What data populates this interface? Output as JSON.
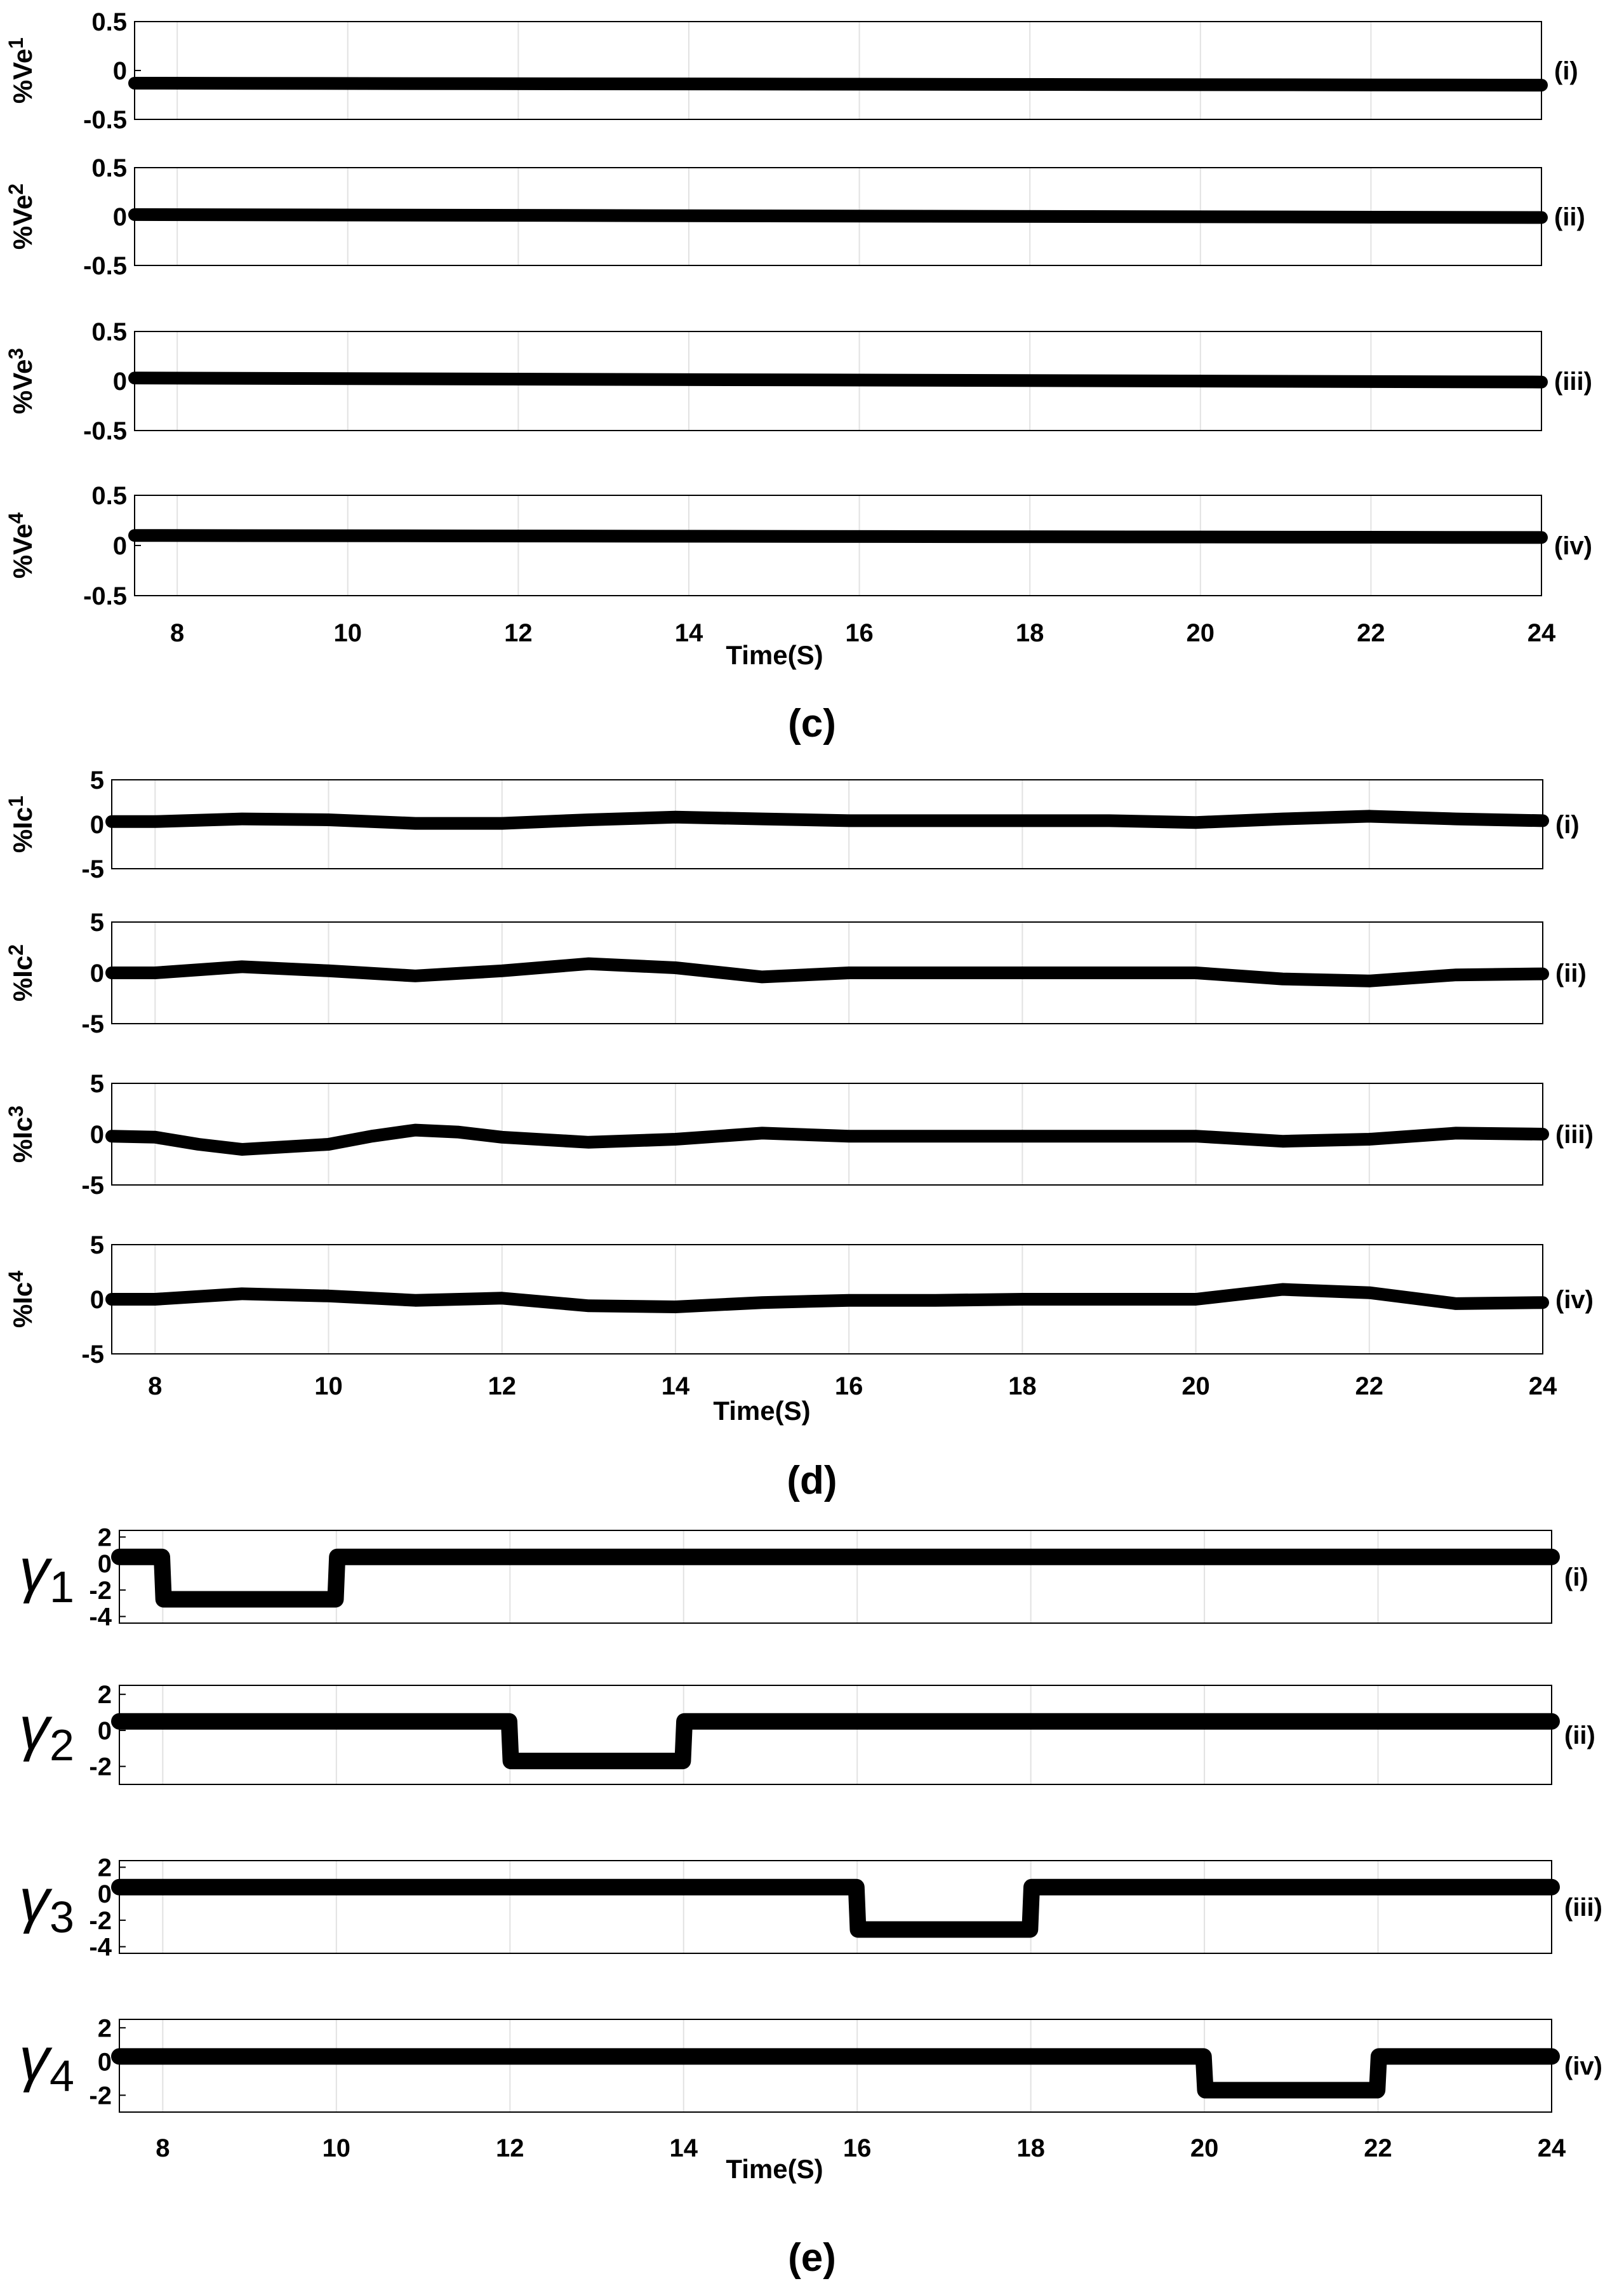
{
  "chart_data": [
    {
      "type": "line",
      "group": "c",
      "ylabel_main": "%Ve",
      "ylabel_sub": "1",
      "tag": "(i)",
      "xlim": [
        7.5,
        24
      ],
      "ylim": [
        -0.5,
        0.5
      ],
      "yticks": [
        "0.5",
        "0",
        "-0.5"
      ],
      "x": [
        7.5,
        24
      ],
      "series": [
        {
          "values": [
            -0.13,
            -0.15
          ]
        }
      ]
    },
    {
      "type": "line",
      "group": "c",
      "ylabel_main": "%Ve",
      "ylabel_sub": "2",
      "tag": "(ii)",
      "xlim": [
        7.5,
        24
      ],
      "ylim": [
        -0.5,
        0.5
      ],
      "yticks": [
        "0.5",
        "0",
        "-0.5"
      ],
      "x": [
        7.5,
        24
      ],
      "series": [
        {
          "values": [
            0.02,
            -0.01
          ]
        }
      ]
    },
    {
      "type": "line",
      "group": "c",
      "ylabel_main": "%Ve",
      "ylabel_sub": "3",
      "tag": "(iii)",
      "xlim": [
        7.5,
        24
      ],
      "ylim": [
        -0.5,
        0.5
      ],
      "yticks": [
        "0.5",
        "0",
        "-0.5"
      ],
      "x": [
        7.5,
        24
      ],
      "series": [
        {
          "values": [
            0.03,
            -0.01
          ]
        }
      ]
    },
    {
      "type": "line",
      "group": "c",
      "ylabel_main": "%Ve",
      "ylabel_sub": "4",
      "tag": "(iv)",
      "xlim": [
        7.5,
        24
      ],
      "ylim": [
        -0.5,
        0.5
      ],
      "yticks": [
        "0.5",
        "0",
        "-0.5"
      ],
      "x": [
        7.5,
        24
      ],
      "series": [
        {
          "values": [
            0.1,
            0.08
          ]
        }
      ]
    },
    {
      "type": "line",
      "group": "d",
      "ylabel_main": "%Ic",
      "ylabel_sub": "1",
      "tag": "(i)",
      "xlim": [
        7.5,
        24
      ],
      "ylim": [
        -5,
        5
      ],
      "yticks": [
        "5",
        "0",
        "-5"
      ],
      "x": [
        7.5,
        8,
        9,
        10,
        11,
        12,
        13,
        14,
        15,
        16,
        17,
        18,
        19,
        20,
        21,
        22,
        23,
        24
      ],
      "series": [
        {
          "values": [
            0.3,
            0.3,
            0.6,
            0.5,
            0.1,
            0.1,
            0.5,
            0.8,
            0.6,
            0.4,
            0.4,
            0.4,
            0.4,
            0.2,
            0.6,
            0.9,
            0.6,
            0.4
          ]
        }
      ]
    },
    {
      "type": "line",
      "group": "d",
      "ylabel_main": "%Ic",
      "ylabel_sub": "2",
      "tag": "(ii)",
      "xlim": [
        7.5,
        24
      ],
      "ylim": [
        -5,
        5
      ],
      "yticks": [
        "5",
        "0",
        "-5"
      ],
      "x": [
        7.5,
        8,
        9,
        10,
        11,
        12,
        13,
        14,
        15,
        16,
        17,
        18,
        19,
        20,
        21,
        22,
        23,
        24
      ],
      "series": [
        {
          "values": [
            0.0,
            0.0,
            0.6,
            0.2,
            -0.3,
            0.2,
            0.9,
            0.5,
            -0.4,
            0.0,
            0.0,
            0.0,
            0.0,
            0.0,
            -0.6,
            -0.8,
            -0.2,
            -0.1
          ]
        }
      ]
    },
    {
      "type": "line",
      "group": "d",
      "ylabel_main": "%Ic",
      "ylabel_sub": "3",
      "tag": "(iii)",
      "xlim": [
        7.5,
        24
      ],
      "ylim": [
        -5,
        5
      ],
      "yticks": [
        "5",
        "0",
        "-5"
      ],
      "x": [
        7.5,
        8,
        8.5,
        9,
        10,
        10.5,
        11,
        11.5,
        12,
        13,
        14,
        15,
        16,
        17,
        18,
        19,
        20,
        21,
        22,
        23,
        24
      ],
      "series": [
        {
          "values": [
            -0.2,
            -0.3,
            -1.0,
            -1.5,
            -1.0,
            -0.2,
            0.4,
            0.2,
            -0.3,
            -0.8,
            -0.5,
            0.1,
            -0.2,
            -0.2,
            -0.2,
            -0.2,
            -0.2,
            -0.7,
            -0.5,
            0.1,
            0.0
          ]
        }
      ]
    },
    {
      "type": "line",
      "group": "d",
      "ylabel_main": "%Ic",
      "ylabel_sub": "4",
      "tag": "(iv)",
      "xlim": [
        7.5,
        24
      ],
      "ylim": [
        -5,
        5
      ],
      "yticks": [
        "5",
        "0",
        "-5"
      ],
      "x": [
        7.5,
        8,
        9,
        10,
        11,
        12,
        13,
        14,
        15,
        16,
        17,
        18,
        19,
        20,
        21,
        22,
        23,
        24
      ],
      "series": [
        {
          "values": [
            0.0,
            0.0,
            0.5,
            0.3,
            -0.1,
            0.1,
            -0.6,
            -0.7,
            -0.3,
            -0.1,
            -0.1,
            0.0,
            0.0,
            0.0,
            0.9,
            0.6,
            -0.4,
            -0.3
          ]
        }
      ]
    },
    {
      "type": "line",
      "group": "e",
      "ylabel_main": "γ",
      "ylabel_sub": "1",
      "tag": "(i)",
      "xlim": [
        7.5,
        24
      ],
      "ylim": [
        -4.5,
        2.5
      ],
      "yticks": [
        "2",
        "0",
        "-2",
        "-4"
      ],
      "x": [
        7.5,
        7.99,
        8.01,
        9.99,
        10.01,
        24
      ],
      "series": [
        {
          "values": [
            0.5,
            0.5,
            -2.7,
            -2.7,
            0.5,
            0.5
          ]
        }
      ]
    },
    {
      "type": "line",
      "group": "e",
      "ylabel_main": "γ",
      "ylabel_sub": "2",
      "tag": "(ii)",
      "xlim": [
        7.5,
        24
      ],
      "ylim": [
        -3,
        2.5
      ],
      "yticks": [
        "2",
        "0",
        "-2"
      ],
      "x": [
        7.5,
        11.99,
        12.01,
        13.99,
        14.01,
        24
      ],
      "series": [
        {
          "values": [
            0.5,
            0.5,
            -1.7,
            -1.7,
            0.5,
            0.5
          ]
        }
      ]
    },
    {
      "type": "line",
      "group": "e",
      "ylabel_main": "γ",
      "ylabel_sub": "3",
      "tag": "(iii)",
      "xlim": [
        7.5,
        24
      ],
      "ylim": [
        -4.5,
        2.5
      ],
      "yticks": [
        "2",
        "0",
        "-2",
        "-4"
      ],
      "x": [
        7.5,
        15.99,
        16.01,
        17.99,
        18.01,
        24
      ],
      "series": [
        {
          "values": [
            0.5,
            0.5,
            -2.7,
            -2.7,
            0.5,
            0.5
          ]
        }
      ]
    },
    {
      "type": "line",
      "group": "e",
      "ylabel_main": "γ",
      "ylabel_sub": "4",
      "tag": "(iv)",
      "xlim": [
        7.5,
        24
      ],
      "ylim": [
        -3,
        2.5
      ],
      "yticks": [
        "2",
        "0",
        "-2"
      ],
      "x": [
        7.5,
        19.99,
        20.01,
        21.99,
        22.01,
        24
      ],
      "series": [
        {
          "values": [
            0.3,
            0.3,
            -1.7,
            -1.7,
            0.3,
            0.3
          ]
        }
      ]
    }
  ],
  "xticks": [
    "8",
    "10",
    "12",
    "14",
    "16",
    "18",
    "20",
    "22",
    "24"
  ],
  "xtick_values": [
    8,
    10,
    12,
    14,
    16,
    18,
    20,
    22,
    24
  ],
  "xlabel": "Time(S)",
  "captions": [
    "(c)",
    "(d)",
    "(e)"
  ]
}
